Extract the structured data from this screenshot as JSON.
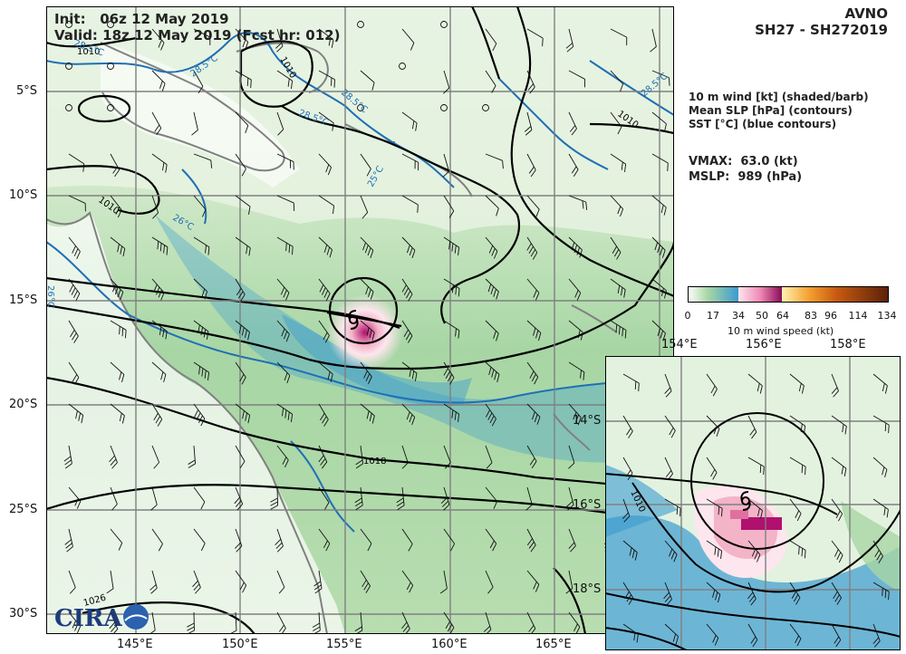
{
  "header": {
    "init_label": "Init:",
    "init_value": "06z 12 May 2019",
    "valid_label": "Valid:",
    "valid_value": "18z 12 May 2019 (Fcst hr: 012)"
  },
  "storm": {
    "model": "AVNO",
    "id_line": "SH27 - SH272019",
    "vmax_label": "VMAX:",
    "vmax_value": "63.0 (kt)",
    "mslp_label": "MSLP:",
    "mslp_value": "989 (hPa)"
  },
  "legend": {
    "line1": "10 m wind [kt] (shaded/barb)",
    "line2": "Mean SLP [hPa] (contours)",
    "line3": "SST [°C] (blue contours)"
  },
  "colorbar": {
    "label": "10 m wind speed (kt)",
    "ticks": [
      "0",
      "17",
      "34",
      "50",
      "64",
      "83",
      "96",
      "114",
      "134"
    ]
  },
  "map_axes": {
    "lon_labels": [
      "145°E",
      "150°E",
      "155°E",
      "160°E",
      "165°E"
    ],
    "lat_labels": [
      "5°S",
      "10°S",
      "15°S",
      "20°S",
      "25°S",
      "30°S"
    ]
  },
  "inset_axes": {
    "lon_labels": [
      "154°E",
      "156°E",
      "158°E"
    ],
    "lat_labels": [
      "14°S",
      "16°S",
      "18°S"
    ]
  },
  "contour_labels": {
    "slp": [
      "1010",
      "1010",
      "1010",
      "1010",
      "1018",
      "1026",
      "1010"
    ],
    "sst": [
      "28.5°C",
      "28.5°C",
      "28.5°C",
      "28.5°C",
      "28.5°C",
      "26°C",
      "26°C",
      "25°C"
    ]
  },
  "logo": {
    "text": "CIRA"
  },
  "colors": {
    "land_white": "#ffffff",
    "wind_light_green": "#cfe8c8",
    "wind_green": "#a7d6a4",
    "wind_blue": "#3a9bd0",
    "wind_pink": "#f3b4c8",
    "wind_magenta": "#b0106e",
    "sst_contour": "#1f6fb5",
    "coast": "#808080"
  }
}
